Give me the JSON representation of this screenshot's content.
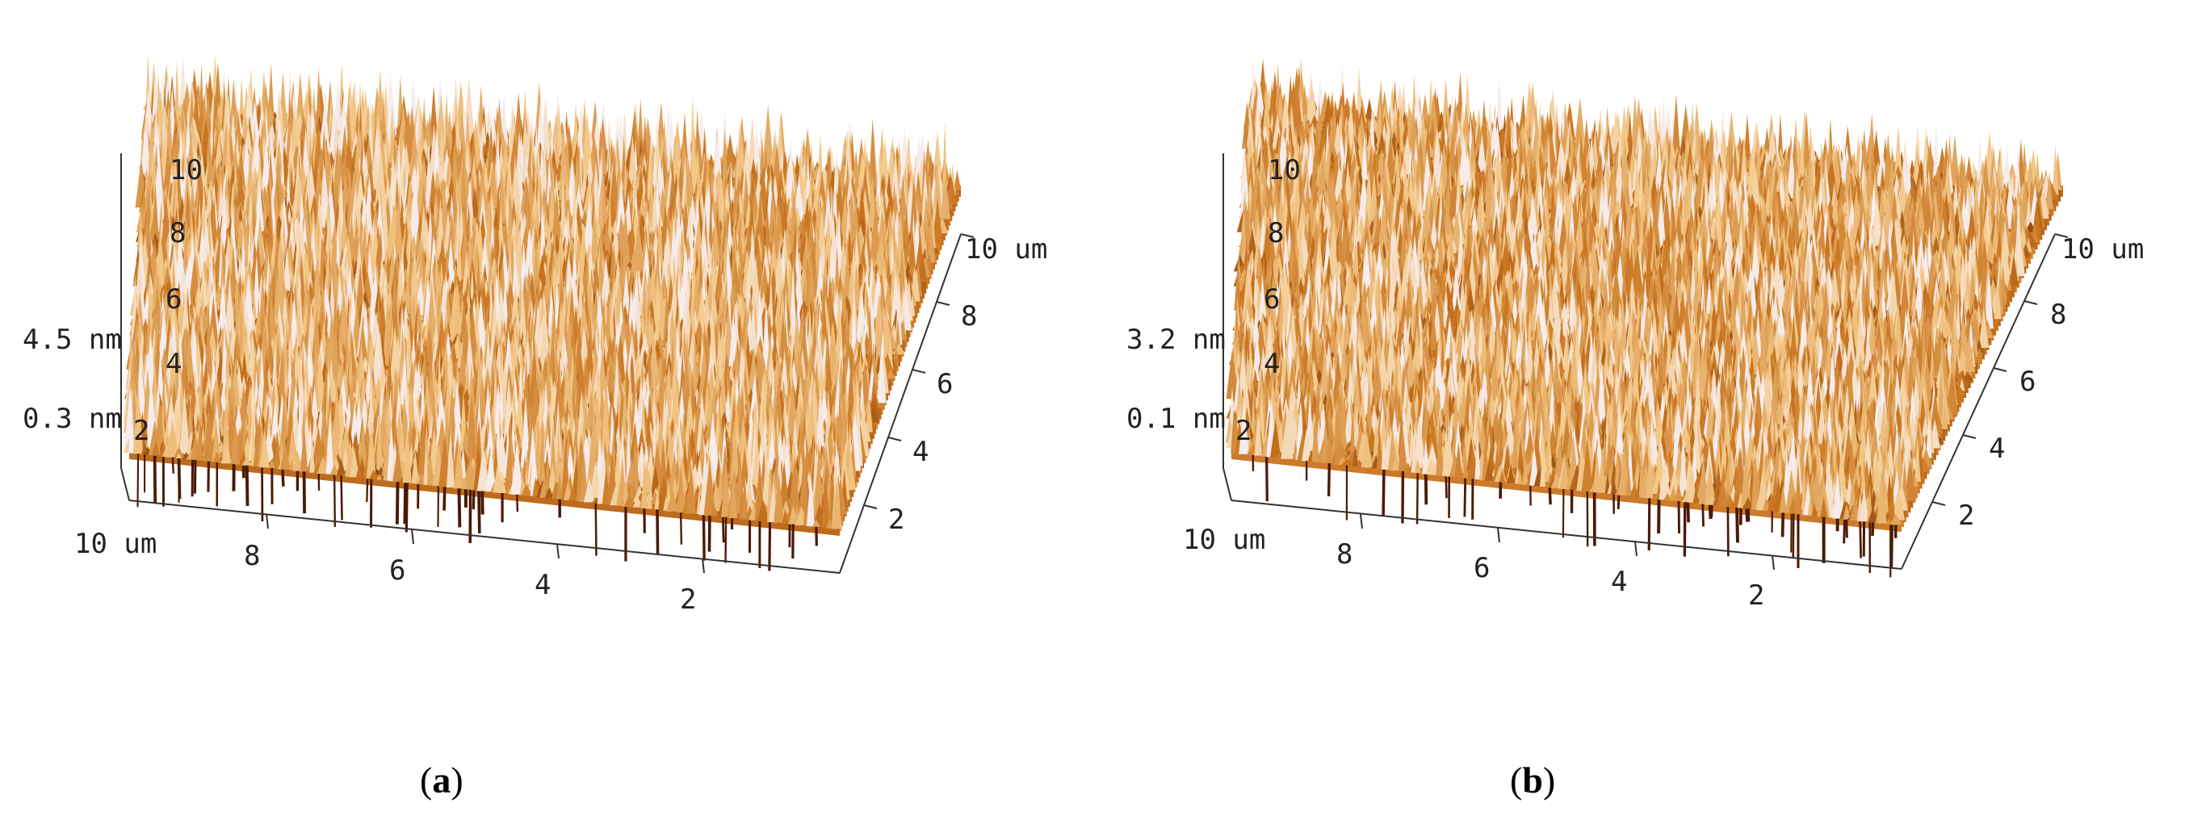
{
  "panels": [
    {
      "id": "a",
      "caption_letter": "a",
      "z_high_label": "4.5 nm",
      "z_low_label": "0.3 nm",
      "z_ticks": [
        "10",
        "8",
        "6",
        "4",
        "2"
      ],
      "x_axis": {
        "start_label": "10 um",
        "ticks": [
          "8",
          "6",
          "4",
          "2"
        ]
      },
      "y_axis": {
        "end_label": "10 um",
        "ticks": [
          "8",
          "6",
          "4",
          "2"
        ]
      },
      "surface": {
        "seed": 11,
        "roughness": 1.0
      }
    },
    {
      "id": "b",
      "caption_letter": "b",
      "z_high_label": "3.2 nm",
      "z_low_label": "0.1 nm",
      "z_ticks": [
        "10",
        "8",
        "6",
        "4",
        "2"
      ],
      "x_axis": {
        "start_label": "10 um",
        "ticks": [
          "8",
          "6",
          "4",
          "2"
        ]
      },
      "y_axis": {
        "end_label": "10 um",
        "ticks": [
          "8",
          "6",
          "4",
          "2"
        ]
      },
      "surface": {
        "seed": 29,
        "roughness": 0.85
      }
    }
  ],
  "colors": {
    "surface_dark": "#4a1a06",
    "surface_mid": "#c8731e",
    "surface_light": "#f3c98a",
    "surface_highlight": "#f6ecec",
    "axis": "#333333"
  }
}
